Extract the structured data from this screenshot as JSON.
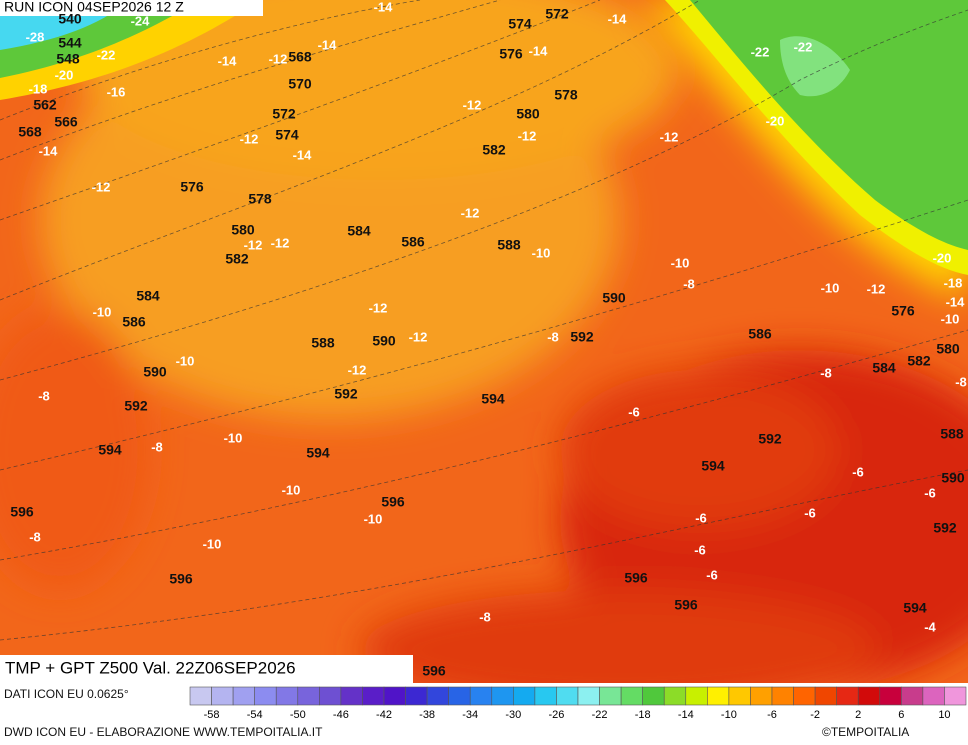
{
  "header": {
    "run": "RUN ICON 04SEP2026 12 Z"
  },
  "map": {
    "title": "TMP + GPT Z500 Val. 22Z06SEP2026",
    "geopotential_labels": [
      540,
      544,
      548,
      562,
      566,
      568,
      568,
      570,
      572,
      574,
      574,
      572,
      576,
      578,
      580,
      582,
      576,
      578,
      580,
      582,
      584,
      586,
      588,
      584,
      586,
      590,
      588,
      590,
      592,
      592,
      594,
      594,
      594,
      590,
      592,
      586,
      584,
      582,
      580,
      576,
      588,
      592,
      594,
      596,
      596,
      596,
      596,
      596,
      594,
      596,
      590,
      592
    ],
    "temperature_labels": [
      -28,
      -24,
      -22,
      -20,
      -18,
      -16,
      -14,
      -14,
      -14,
      -14,
      -14,
      -14,
      -12,
      -12,
      -12,
      -12,
      -14,
      -12,
      -12,
      -22,
      -22,
      -20,
      -12,
      -12,
      -12,
      -10,
      -10,
      -8,
      -10,
      -12,
      -20,
      -18,
      -14,
      -10,
      -10,
      -12,
      -12,
      -8,
      -10,
      -12,
      -8,
      -8,
      -8,
      -10,
      -8,
      -6,
      -6,
      -6,
      -10,
      -10,
      -6,
      -6,
      -8,
      -10,
      -6,
      -6,
      -8,
      -4
    ]
  },
  "colorbar": {
    "ticks": [
      -58,
      -54,
      -50,
      -46,
      -42,
      -38,
      -34,
      -30,
      -26,
      -22,
      -18,
      -14,
      -10,
      -6,
      -2,
      2,
      6,
      10
    ],
    "colors": [
      "#c8c8f0",
      "#b4b4f0",
      "#a0a0f0",
      "#8c8cf0",
      "#8278e6",
      "#7864dc",
      "#6e50d2",
      "#6432c8",
      "#5a1ec8",
      "#5014c8",
      "#3c28d2",
      "#3246dc",
      "#2864e6",
      "#2882f0",
      "#1e96f0",
      "#14aaf0",
      "#28c8f0",
      "#50dcf0",
      "#8cf0f0",
      "#78e696",
      "#64dc64",
      "#50c83c",
      "#8cdc28",
      "#c8f000",
      "#fff000",
      "#ffc800",
      "#ffa000",
      "#ff8200",
      "#ff6400",
      "#f04600",
      "#e62814",
      "#d20a0a",
      "#c8003c",
      "#c83c8c",
      "#dc64be",
      "#f096dc"
    ]
  },
  "footer": {
    "source": "DATI ICON EU 0.0625°",
    "credit": "DWD ICON EU - ELABORAZIONE WWW.TEMPOITALIA.IT",
    "brand": "©TEMPOITALIA"
  }
}
